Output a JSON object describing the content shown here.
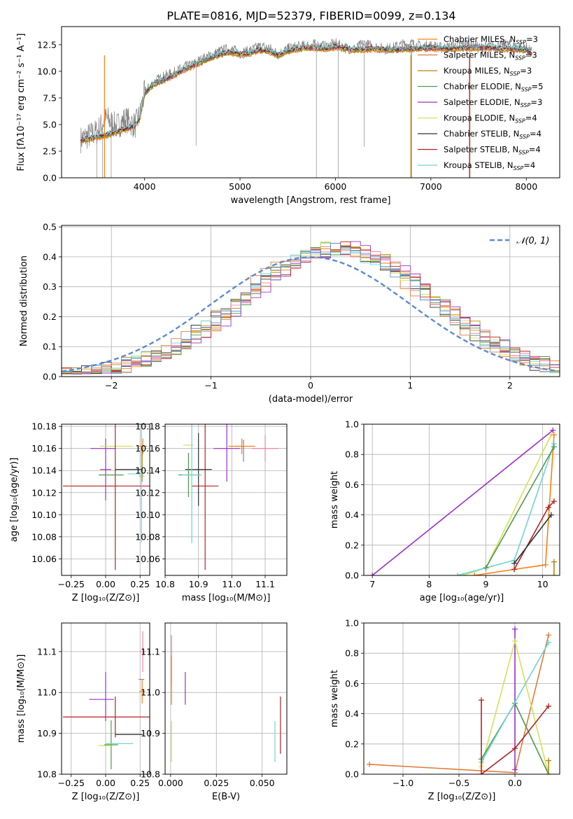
{
  "figure": {
    "title": "PLATE=0816, MJD=52379, FIBERID=0099, z=0.134"
  },
  "chart_data": [
    {
      "id": "spectrum",
      "type": "line",
      "title": "PLATE=0816, MJD=52379, FIBERID=0099, z=0.134",
      "xlabel": "wavelength [Angstrom, rest frame]",
      "ylabel": "Flux [fλ10⁻¹⁷ erg cm⁻² s⁻¹ A⁻¹]",
      "xlim": [
        3130,
        8350
      ],
      "ylim": [
        0,
        14.2
      ],
      "xticks": [
        4000,
        5000,
        6000,
        7000,
        8000
      ],
      "yticks": [
        0.0,
        2.5,
        5.0,
        7.5,
        10.0,
        12.5
      ],
      "ytick_labels": [
        "0.0",
        "2.5",
        "5.0",
        "7.5",
        "10.0",
        "12.5"
      ],
      "legend_position": "right",
      "data_series": {
        "name": "data",
        "color": "#808080",
        "x": [
          3330,
          3500,
          3600,
          3700,
          3800,
          3900,
          3950,
          4000,
          4100,
          4200,
          4300,
          4400,
          4500,
          4600,
          4700,
          4800,
          4900,
          5000,
          5100,
          5200,
          5300,
          5400,
          5500,
          5600,
          5700,
          5800,
          5900,
          6000,
          6100,
          6200,
          6300,
          6400,
          6500,
          6600,
          6700,
          6800,
          6900,
          7000,
          7100,
          7200,
          7300,
          7400,
          7500,
          7600,
          7700,
          7800,
          7900,
          8000,
          8050
        ],
        "y": [
          3.6,
          4.3,
          5.6,
          4.8,
          5.5,
          4.9,
          5.9,
          8.0,
          9.0,
          9.5,
          9.8,
          10.3,
          10.6,
          11.1,
          11.5,
          11.9,
          12.1,
          11.7,
          11.9,
          12.3,
          12.2,
          11.6,
          12.1,
          12.3,
          12.4,
          12.5,
          12.3,
          12.6,
          12.2,
          12.1,
          12.6,
          12.3,
          12.1,
          12.2,
          12.5,
          12.6,
          12.3,
          12.4,
          12.2,
          12.3,
          12.5,
          12.6,
          12.2,
          12.3,
          12.4,
          12.5,
          12.3,
          12.2,
          11.8
        ]
      },
      "model_series": [
        {
          "name": "Chabrier MILES, N_SSP=3",
          "color": "#ff7f0e"
        },
        {
          "name": "Salpeter MILES, N_SSP=3",
          "color": "#e07b39"
        },
        {
          "name": "Kroupa MILES, N_SSP=3",
          "color": "#b5860b"
        },
        {
          "name": "Chabrier ELODIE, N_SSP=5",
          "color": "#4c9a4c"
        },
        {
          "name": "Salpeter ELODIE, N_SSP=3",
          "color": "#9b30c8"
        },
        {
          "name": "Kroupa ELODIE, N_SSP=4",
          "color": "#d4e157"
        },
        {
          "name": "Chabrier STELIB, N_SSP=4",
          "color": "#333333"
        },
        {
          "name": "Salpeter STELIB, N_SSP=4",
          "color": "#b22222"
        },
        {
          "name": "Kroupa STELIB, N_SSP=4",
          "color": "#6fd3d8"
        }
      ],
      "model_curve": {
        "x": [
          3330,
          3500,
          3600,
          3700,
          3800,
          3900,
          3950,
          4000,
          4100,
          4200,
          4300,
          4400,
          4500,
          4600,
          4700,
          4800,
          4900,
          5000,
          5100,
          5200,
          5300,
          5400,
          5500,
          5600,
          5700,
          5800,
          5900,
          6000,
          6200,
          6400,
          6600,
          6800,
          7000,
          7200,
          7400,
          7600,
          7800,
          8000,
          8050
        ],
        "y": [
          3.5,
          3.8,
          4.0,
          4.3,
          4.6,
          4.9,
          5.6,
          7.9,
          8.8,
          9.2,
          9.6,
          10.1,
          10.5,
          10.9,
          11.3,
          11.6,
          11.8,
          11.6,
          11.7,
          12.0,
          11.9,
          11.5,
          11.9,
          12.1,
          12.2,
          12.2,
          12.1,
          12.3,
          12.0,
          12.1,
          12.0,
          12.1,
          12.2,
          12.1,
          12.2,
          12.2,
          12.1,
          12.0,
          11.7
        ]
      }
    },
    {
      "id": "residuals",
      "type": "histogram",
      "xlabel": "(data-model)/error",
      "ylabel": "Normed distribution",
      "xlim": [
        -2.5,
        2.5
      ],
      "ylim": [
        0,
        0.505
      ],
      "xticks": [
        -2,
        -1,
        0,
        1,
        2
      ],
      "xtick_labels": [
        "−2",
        "−1",
        "0",
        "1",
        "2"
      ],
      "yticks": [
        0.0,
        0.1,
        0.2,
        0.3,
        0.4,
        0.5
      ],
      "ytick_labels": [
        "0.0",
        "0.1",
        "0.2",
        "0.3",
        "0.4",
        "0.5"
      ],
      "legend": {
        "label": "𝒩(0, 1)",
        "position": "top-right"
      },
      "normal_curve": {
        "mean": 0,
        "std": 1,
        "color": "#5b8bd0"
      },
      "bin_width": 0.1,
      "hist_colors": [
        "#ff7f0e",
        "#e07b39",
        "#b5860b",
        "#4c9a4c",
        "#9b30c8",
        "#d4e157",
        "#333333",
        "#b22222",
        "#6fd3d8",
        "#f080a0",
        "#5b8bd0"
      ],
      "hist_shift": [
        0.28,
        0.2,
        0.32,
        0.3,
        0.36,
        0.26,
        0.24,
        0.3,
        0.22,
        0.29,
        0.27
      ]
    },
    {
      "id": "age-vs-Z",
      "type": "scatter",
      "xlabel": "Z [log₁₀(Z/Z⊙)]",
      "ylabel": "age  [log₁₀(age/yr)]",
      "xlim": [
        -0.32,
        0.32
      ],
      "ylim": [
        10.045,
        10.182
      ],
      "xticks": [
        -0.25,
        0.0,
        0.25
      ],
      "xtick_labels": [
        "−0.25",
        "0.00",
        "0.25"
      ],
      "yticks": [
        10.06,
        10.08,
        10.1,
        10.12,
        10.14,
        10.16,
        10.18
      ],
      "ytick_labels": [
        "10.06",
        "10.08",
        "10.10",
        "10.12",
        "10.14",
        "10.16",
        "10.18"
      ],
      "points": [
        {
          "x": 0.0,
          "y": 10.141,
          "xerr": 0.04,
          "yerr": 0.028,
          "color": "#9b30c8"
        },
        {
          "x": -0.02,
          "y": 10.16,
          "xerr": 0.09,
          "yerr": 0.0,
          "color": "#9b30c8"
        },
        {
          "x": 0.08,
          "y": 10.162,
          "xerr": 0.12,
          "yerr": 0.0,
          "color": "#d4e157"
        },
        {
          "x": 0.27,
          "y": 10.162,
          "xerr": 0.03,
          "yerr": 0.007,
          "color": "#ff7f0e"
        },
        {
          "x": 0.07,
          "y": 10.126,
          "xerr": 0.38,
          "yerr": 0.076,
          "color": "#b22222"
        },
        {
          "x": 0.17,
          "y": 10.141,
          "xerr": 0.1,
          "yerr": 0.0,
          "color": "#333333"
        },
        {
          "x": 0.04,
          "y": 10.136,
          "xerr": 0.09,
          "yerr": 0.0,
          "color": "#4c9a4c"
        },
        {
          "x": 0.26,
          "y": 10.135,
          "xerr": 0.02,
          "yerr": 0.06,
          "color": "#6fd3d8"
        },
        {
          "x": 0.22,
          "y": 10.137,
          "xerr": 0.06,
          "yerr": 0.0,
          "color": "#6fd3d8"
        },
        {
          "x": 0.265,
          "y": 10.145,
          "xerr": 0.0,
          "yerr": 0.015,
          "color": "#b5860b"
        }
      ]
    },
    {
      "id": "age-vs-mass",
      "type": "scatter",
      "xlabel": "mass [log₁₀(M/M⊙)]",
      "ylabel": "",
      "xlim": [
        10.8,
        11.165
      ],
      "ylim": [
        10.045,
        10.182
      ],
      "xticks": [
        10.8,
        10.9,
        11.0,
        11.1
      ],
      "xtick_labels": [
        "10.8",
        "10.9",
        "11.0",
        "11.1"
      ],
      "yticks": [
        10.06,
        10.08,
        10.1,
        10.12,
        10.14,
        10.16,
        10.18
      ],
      "ytick_labels": [
        "10.06",
        "10.08",
        "10.10",
        "10.12",
        "10.14",
        "10.16",
        "10.18"
      ],
      "points": [
        {
          "x": 10.87,
          "y": 10.163,
          "xerr": 0.015,
          "yerr": 0.0,
          "color": "#d4e157"
        },
        {
          "x": 10.985,
          "y": 10.16,
          "xerr": 0.04,
          "yerr": 0.03,
          "color": "#9b30c8"
        },
        {
          "x": 11.03,
          "y": 10.162,
          "xerr": 0.04,
          "yerr": 0.007,
          "color": "#ff7f0e"
        },
        {
          "x": 11.1,
          "y": 10.16,
          "xerr": 0.04,
          "yerr": 0.012,
          "color": "#f080a0"
        },
        {
          "x": 11.035,
          "y": 10.158,
          "xerr": 0.0,
          "yerr": 0.01,
          "color": "#5b8bd0"
        },
        {
          "x": 10.9,
          "y": 10.141,
          "xerr": 0.04,
          "yerr": 0.033,
          "color": "#333333"
        },
        {
          "x": 10.92,
          "y": 10.126,
          "xerr": 0.04,
          "yerr": 0.076,
          "color": "#b22222"
        },
        {
          "x": 10.87,
          "y": 10.136,
          "xerr": 0.03,
          "yerr": 0.02,
          "color": "#4c9a4c"
        },
        {
          "x": 10.88,
          "y": 10.136,
          "xerr": 0.03,
          "yerr": 0.062,
          "color": "#6fd3d8"
        }
      ]
    },
    {
      "id": "weight-vs-age",
      "type": "line",
      "xlabel": "age  [log₁₀(age/yr)]",
      "ylabel": "mass weight",
      "xlim": [
        6.85,
        10.3
      ],
      "ylim": [
        0,
        1.0
      ],
      "xticks": [
        7,
        8,
        9,
        10
      ],
      "xtick_labels": [
        "7",
        "8",
        "9",
        "10"
      ],
      "yticks": [
        0.0,
        0.2,
        0.4,
        0.6,
        0.8,
        1.0
      ],
      "ytick_labels": [
        "0.0",
        "0.2",
        "0.4",
        "0.6",
        "0.8",
        "1.0"
      ],
      "series": [
        {
          "color": "#9b30c8",
          "x": [
            7.0,
            10.18
          ],
          "y": [
            0.0,
            0.96
          ]
        },
        {
          "color": "#d4e157",
          "x": [
            8.6,
            9.0,
            10.15
          ],
          "y": [
            0.0,
            0.05,
            0.93
          ]
        },
        {
          "color": "#ff7f0e",
          "x": [
            8.8,
            9.5,
            10.05,
            10.2
          ],
          "y": [
            0.0,
            0.04,
            0.07,
            0.93
          ]
        },
        {
          "color": "#6fd3d8",
          "x": [
            8.5,
            9.0,
            9.5,
            10.2
          ],
          "y": [
            0.0,
            0.05,
            0.1,
            0.87
          ]
        },
        {
          "color": "#4c9a4c",
          "x": [
            9.0,
            10.2
          ],
          "y": [
            0.05,
            0.85
          ]
        },
        {
          "color": "#b22222",
          "x": [
            9.5,
            10.1,
            10.2
          ],
          "y": [
            0.04,
            0.45,
            0.49
          ]
        },
        {
          "color": "#333333",
          "x": [
            9.5,
            10.15
          ],
          "y": [
            0.08,
            0.4
          ]
        },
        {
          "color": "#b5860b",
          "x": [
            10.2,
            10.2
          ],
          "y": [
            0.0,
            0.09
          ]
        }
      ]
    },
    {
      "id": "mass-vs-Z",
      "type": "scatter",
      "xlabel": "Z [log₁₀(Z/Z⊙)]",
      "ylabel": "mass [log₁₀(M/M⊙)]",
      "xlim": [
        -0.32,
        0.32
      ],
      "ylim": [
        10.8,
        11.17
      ],
      "xticks": [
        -0.25,
        0.0,
        0.25
      ],
      "xtick_labels": [
        "−0.25",
        "0.00",
        "0.25"
      ],
      "yticks": [
        10.8,
        10.9,
        11.0,
        11.1
      ],
      "ytick_labels": [
        "10.8",
        "10.9",
        "11.0",
        "11.1"
      ],
      "points": [
        {
          "x": 0.0,
          "y": 10.99,
          "xerr": 0.0,
          "yerr": 0.06,
          "color": "#9b30c8"
        },
        {
          "x": -0.03,
          "y": 10.983,
          "xerr": 0.09,
          "yerr": 0.0,
          "color": "#9b30c8"
        },
        {
          "x": 0.07,
          "y": 10.94,
          "xerr": 0.38,
          "yerr": 0.05,
          "color": "#b22222"
        },
        {
          "x": 0.17,
          "y": 10.897,
          "xerr": 0.1,
          "yerr": 0.0,
          "color": "#333333"
        },
        {
          "x": 0.04,
          "y": 10.872,
          "xerr": 0.05,
          "yerr": 0.06,
          "color": "#4c9a4c"
        },
        {
          "x": 0.1,
          "y": 10.875,
          "xerr": 0.1,
          "yerr": 0.0,
          "color": "#6fd3d8"
        },
        {
          "x": 0.0,
          "y": 10.87,
          "xerr": 0.05,
          "yerr": 0.0,
          "color": "#d4e157"
        },
        {
          "x": 0.27,
          "y": 11.1,
          "xerr": 0.02,
          "yerr": 0.05,
          "color": "#f080a0"
        },
        {
          "x": 0.26,
          "y": 11.032,
          "xerr": 0.02,
          "yerr": 0.0,
          "color": "#5b8bd0"
        },
        {
          "x": 0.265,
          "y": 11.003,
          "xerr": 0.02,
          "yerr": 0.03,
          "color": "#ff7f0e"
        }
      ]
    },
    {
      "id": "mass-vs-EBV",
      "type": "scatter",
      "xlabel": "E(B-V)",
      "ylabel": "",
      "xlim": [
        -0.003,
        0.0635
      ],
      "ylim": [
        10.8,
        11.17
      ],
      "xticks": [
        0.0,
        0.025,
        0.05
      ],
      "xtick_labels": [
        "0.000",
        "0.025",
        "0.050"
      ],
      "yticks": [
        10.8,
        10.9,
        11.0,
        11.1
      ],
      "ytick_labels": [
        "10.8",
        "10.9",
        "11.0",
        "11.1"
      ],
      "points": [
        {
          "x": 0.0005,
          "y": 11.08,
          "xerr": 0.0,
          "yerr": 0.06,
          "color": "#f080a0"
        },
        {
          "x": 0.0005,
          "y": 11.03,
          "xerr": 0.0,
          "yerr": 0.06,
          "color": "#ff7f0e"
        },
        {
          "x": 0.0005,
          "y": 10.88,
          "xerr": 0.0,
          "yerr": 0.05,
          "color": "#d4e157"
        },
        {
          "x": 0.008,
          "y": 11.01,
          "xerr": 0.0,
          "yerr": 0.04,
          "color": "#9b30c8"
        },
        {
          "x": 0.057,
          "y": 10.88,
          "xerr": 0.0,
          "yerr": 0.05,
          "color": "#6fd3d8"
        },
        {
          "x": 0.06,
          "y": 10.92,
          "xerr": 0.0,
          "yerr": 0.07,
          "color": "#b22222"
        }
      ]
    },
    {
      "id": "weight-vs-Z",
      "type": "line",
      "xlabel": "Z [log₁₀(Z/Z⊙)]",
      "ylabel": "mass weight",
      "xlim": [
        -1.35,
        0.4
      ],
      "ylim": [
        0,
        1.0
      ],
      "xticks": [
        -1.0,
        -0.5,
        0.0
      ],
      "xtick_labels": [
        "−1.0",
        "−0.5",
        "0.0"
      ],
      "yticks": [
        0.0,
        0.2,
        0.4,
        0.6,
        0.8,
        1.0
      ],
      "ytick_labels": [
        "0.0",
        "0.2",
        "0.4",
        "0.6",
        "0.8",
        "1.0"
      ],
      "series": [
        {
          "color": "#e07b39",
          "x": [
            -1.3,
            0.0,
            0.3
          ],
          "y": [
            0.065,
            0.01,
            0.92
          ]
        },
        {
          "color": "#9b30c8",
          "x": [
            0.0,
            0.0
          ],
          "y": [
            0.03,
            0.96
          ]
        },
        {
          "color": "#d4e157",
          "x": [
            -0.3,
            0.0,
            0.3
          ],
          "y": [
            0.05,
            0.88,
            0.0
          ]
        },
        {
          "color": "#4c9a4c",
          "x": [
            -0.3,
            0.0,
            0.3
          ],
          "y": [
            0.1,
            0.47,
            0.0
          ]
        },
        {
          "color": "#6fd3d8",
          "x": [
            -0.3,
            0.3
          ],
          "y": [
            0.08,
            0.87
          ]
        },
        {
          "color": "#b22222",
          "x": [
            -0.3,
            -0.3,
            0.0,
            0.3
          ],
          "y": [
            0.49,
            0.0,
            0.17,
            0.45
          ]
        },
        {
          "color": "#b5860b",
          "x": [
            0.3,
            0.3
          ],
          "y": [
            0.0,
            0.09
          ]
        }
      ]
    }
  ]
}
